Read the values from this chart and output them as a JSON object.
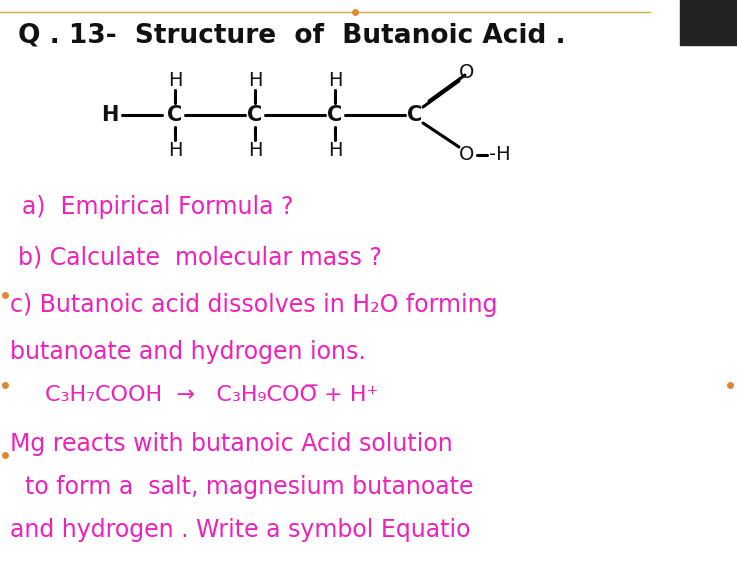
{
  "bg_color": "#ffffff",
  "title_color": "#111111",
  "text_color": "#ee22bb",
  "title": "Q . 13-  Structure  of  Butanoic Acid .",
  "line_a": "a)  Empirical Formula ?",
  "line_b": "b) Calculate  molecular mass ?",
  "line_c1": "c) Butanoic acid dissolves in H₂O forming",
  "line_c2": "butanoate and hydrogen ions.",
  "line_eq": "C₃H₇COOH  →   C₃H₉COO̅ + H⁺",
  "line_mg1": "Mg reacts with butanoic Acid solution",
  "line_mg2": "  to form a  salt, magnesium butanoate",
  "line_mg3": "and hydrogen . Write a symbol Equatio",
  "title_fontsize": 19,
  "body_fontsize": 17,
  "eq_fontsize": 16,
  "struct_fontsize": 15
}
